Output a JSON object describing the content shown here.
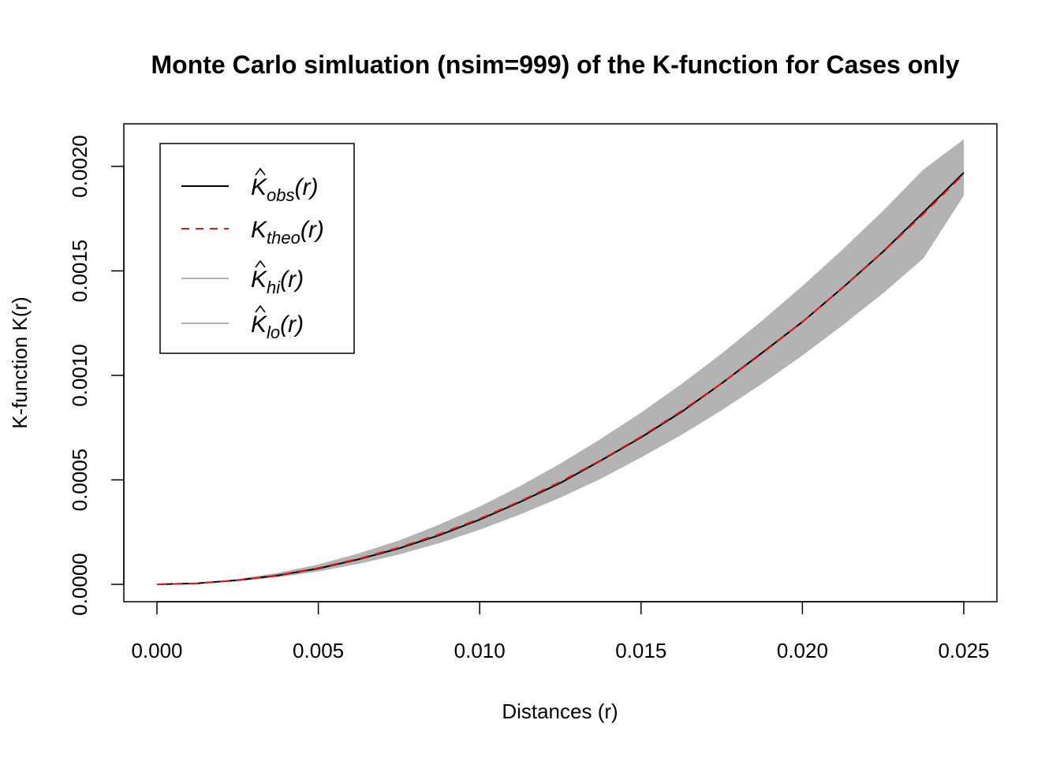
{
  "chart_data": {
    "type": "line",
    "title": "Monte Carlo simluation (nsim=999) of the K-function for Cases only",
    "xlabel": "Distances (r)",
    "ylabel": "K-function K(r)",
    "xlim": [
      0,
      0.025
    ],
    "ylim": [
      0,
      0.002
    ],
    "xticks": [
      "0.000",
      "0.005",
      "0.010",
      "0.015",
      "0.020",
      "0.025"
    ],
    "yticks": [
      "0.0000",
      "0.0005",
      "0.0010",
      "0.0015",
      "0.0020"
    ],
    "grid": false,
    "legend_position": "top-left",
    "x": [
      0.0,
      0.00125,
      0.0025,
      0.00375,
      0.005,
      0.00625,
      0.0075,
      0.00875,
      0.01,
      0.01125,
      0.0125,
      0.01375,
      0.015,
      0.01625,
      0.0175,
      0.01875,
      0.02,
      0.02125,
      0.0225,
      0.02375,
      0.025
    ],
    "series": [
      {
        "name": "K_obs",
        "legend_label": {
          "base": "K",
          "hat": true,
          "sub": "obs",
          "arg": "(r)"
        },
        "color": "#000000",
        "style": "solid",
        "values": [
          0.0,
          5e-06,
          2e-05,
          4.3e-05,
          7.6e-05,
          0.00012,
          0.000172,
          0.000235,
          0.00031,
          0.000394,
          0.000485,
          0.000592,
          0.000703,
          0.000825,
          0.000962,
          0.001108,
          0.001256,
          0.00142,
          0.001592,
          0.00178,
          0.00197
        ]
      },
      {
        "name": "K_theo",
        "legend_label": {
          "base": "K",
          "hat": false,
          "sub": "theo",
          "arg": "(r)"
        },
        "color": "#e41a1c",
        "style": "dashed",
        "values": [
          0.0,
          4.9e-06,
          1.96e-05,
          4.42e-05,
          7.85e-05,
          0.0001227,
          0.0001767,
          0.0002405,
          0.0003142,
          0.0003976,
          0.0004909,
          0.000594,
          0.0007069,
          0.0008296,
          0.0009621,
          0.0011045,
          0.0012566,
          0.0014186,
          0.0015904,
          0.001772,
          0.0019635
        ]
      },
      {
        "name": "K_hi",
        "legend_label": {
          "base": "K",
          "hat": true,
          "sub": "hi",
          "arg": "(r)"
        },
        "color": "#b3b3b3",
        "style": "band-upper",
        "values": [
          0.0,
          6.5e-06,
          2.5e-05,
          5.5e-05,
          9.5e-05,
          0.000148,
          0.00021,
          0.000286,
          0.000372,
          0.00047,
          0.000578,
          0.000696,
          0.000822,
          0.000958,
          0.001105,
          0.001262,
          0.001428,
          0.001603,
          0.001788,
          0.001985,
          0.00213
        ]
      },
      {
        "name": "K_lo",
        "legend_label": {
          "base": "K",
          "hat": true,
          "sub": "lo",
          "arg": "(r)"
        },
        "color": "#b3b3b3",
        "style": "band-lower",
        "values": [
          0.0,
          3.5e-06,
          1.5e-05,
          3.4e-05,
          6.2e-05,
          9.8e-05,
          0.000143,
          0.000197,
          0.000261,
          0.000334,
          0.000415,
          0.000505,
          0.000607,
          0.000715,
          0.000833,
          0.00096,
          0.001095,
          0.00124,
          0.001393,
          0.00156,
          0.00186
        ]
      }
    ]
  }
}
